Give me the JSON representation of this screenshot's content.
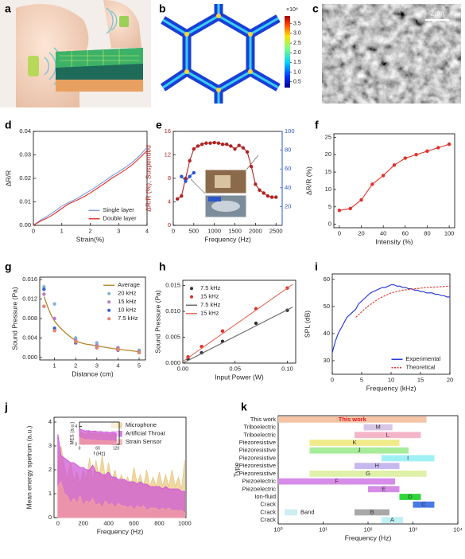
{
  "figures": [
    {
      "panel": "a"
    },
    {
      "panel": "b",
      "colorbar": {
        "label": "×10⁸",
        "clim": [
          0.2,
          3.9
        ],
        "ticks": [
          0.5,
          {
            "value": 1,
            "label": "1.0"
          },
          1.5,
          {
            "value": 2,
            "label": "2.0"
          },
          2.5,
          {
            "value": 3,
            "label": "3.0"
          },
          3.5
        ]
      }
    },
    {
      "panel": "c",
      "scale_bar": "2μm"
    }
  ],
  "chart_data": [
    {
      "panel": "d",
      "type": "line",
      "xlabel": "Strain(%)",
      "ylabel": "ΔR/R",
      "x": [
        0,
        0.25,
        0.5,
        0.75,
        1,
        1.25,
        1.5,
        1.75,
        2,
        2.25,
        2.5,
        2.75,
        3,
        3.25,
        3.5,
        3.75,
        4
      ],
      "xlim": [
        0,
        4
      ],
      "xticks": [
        0,
        1,
        2,
        3,
        4
      ],
      "ylim": [
        0,
        0.04
      ],
      "yticks": [
        {
          "value": 0,
          "label": "0.00"
        },
        {
          "value": 0.01,
          "label": "0.01"
        },
        {
          "value": 0.02,
          "label": "0.02"
        },
        {
          "value": 0.03,
          "label": "0.03"
        },
        {
          "value": 0.04,
          "label": "0.04"
        }
      ],
      "legend": "lower right",
      "series": [
        {
          "name": "Single layer",
          "color": "#7b9be0",
          "style": "line",
          "values": [
            0,
            0.0022,
            0.004,
            0.006,
            0.0082,
            0.0098,
            0.0112,
            0.013,
            0.0148,
            0.0168,
            0.0188,
            0.021,
            0.0228,
            0.0248,
            0.027,
            0.0298,
            0.0332
          ]
        },
        {
          "name": "Double layer",
          "color": "#e0302a",
          "style": "line",
          "values": [
            0,
            0.0018,
            0.0032,
            0.005,
            0.0072,
            0.0092,
            0.0105,
            0.012,
            0.0138,
            0.0158,
            0.0178,
            0.02,
            0.0218,
            0.0238,
            0.026,
            0.0288,
            0.0318
          ]
        }
      ]
    },
    {
      "panel": "e",
      "type": "line",
      "xlabel": "Frequency (Hz)",
      "ylabel": "ΔR/R (%), Suspended",
      "ylabel_color": "#b22222",
      "y2_color": "#2b55c9",
      "x": [
        100,
        200,
        300,
        400,
        500,
        600,
        700,
        800,
        900,
        1000,
        1100,
        1200,
        1300,
        1400,
        1500,
        1600,
        1700,
        1800,
        1900,
        2000,
        2100,
        2200,
        2300,
        2400,
        2500
      ],
      "xlim": [
        0,
        2650
      ],
      "xticks": [
        0,
        500,
        1000,
        1500,
        2000,
        2500
      ],
      "ylim": [
        0,
        16
      ],
      "yticks": [
        0,
        4,
        8,
        12,
        16
      ],
      "y2lim": [
        0,
        100
      ],
      "y2ticks": [
        20,
        40,
        60,
        80,
        100
      ],
      "series": [
        {
          "color": "#b22222",
          "style": "line+markers",
          "values": [
            4.5,
            5,
            8,
            11,
            13,
            13.5,
            13.8,
            14,
            14,
            14.1,
            14,
            13.8,
            13.8,
            13.5,
            13,
            13.6,
            13.2,
            12.5,
            10,
            7,
            6,
            5.5,
            5,
            4.8,
            4.8
          ]
        },
        {
          "color": "#2b55c9",
          "style": "line+markers",
          "axis": "y2",
          "values": [
            null,
            52,
            47,
            52,
            56,
            null,
            null,
            null,
            null,
            null,
            null,
            null,
            null,
            null,
            null,
            null,
            null,
            null,
            null,
            null,
            null,
            null,
            null,
            null,
            null
          ]
        }
      ]
    },
    {
      "panel": "f",
      "type": "line",
      "xlabel": "Intensity (%)",
      "ylabel": "ΔR/R (%)",
      "x": [
        0,
        10,
        20,
        30,
        40,
        50,
        60,
        70,
        80,
        90,
        100
      ],
      "xlim": [
        -5,
        105
      ],
      "xticks": [
        0,
        20,
        40,
        60,
        80,
        100
      ],
      "ylim": [
        -1,
        26
      ],
      "yticks": [
        0,
        5,
        10,
        15,
        20,
        25
      ],
      "series": [
        {
          "color": "#e0302a",
          "style": "line+markers",
          "values": [
            4,
            4.5,
            7,
            11.5,
            14,
            17,
            19,
            20,
            21,
            22,
            23
          ]
        }
      ]
    },
    {
      "panel": "g",
      "type": "scatter",
      "xlabel": "Distance (cm)",
      "ylabel": "Sound Pressure (Pa)",
      "x": [
        0.5,
        1,
        2,
        3,
        4,
        5
      ],
      "xlim": [
        0.3,
        5.3
      ],
      "xticks": [
        1,
        2,
        3,
        4,
        5
      ],
      "ylim": [
        -0.0005,
        0.0165
      ],
      "yticks": [
        {
          "value": 0,
          "label": "0.000"
        },
        {
          "value": 0.004,
          "label": "0.004"
        },
        {
          "value": 0.008,
          "label": "0.008"
        },
        {
          "value": 0.012,
          "label": "0.012"
        },
        {
          "value": 0.016,
          "label": "0.016"
        }
      ],
      "legend": "upper right",
      "series": [
        {
          "name": "Average",
          "color": "#b8862b",
          "style": "curve",
          "values": [
            0.0125,
            0.0075,
            0.0035,
            0.0024,
            0.0017,
            0.0012
          ]
        },
        {
          "name": "20 kHz",
          "color": "#7fb3d5",
          "style": "markers",
          "values": [
            0.0145,
            0.011,
            0.004,
            0.003,
            0.002,
            0.0015
          ]
        },
        {
          "name": "15 kHz",
          "color": "#b07cc6",
          "style": "markers",
          "values": [
            0.013,
            0.008,
            0.0035,
            0.0025,
            0.002,
            0.0012
          ]
        },
        {
          "name": "10 kHz",
          "color": "#3a5fcd",
          "style": "markers",
          "values": [
            0.014,
            0.006,
            0.003,
            0.002,
            0.0015,
            0.001
          ]
        },
        {
          "name": "7.5 kHz",
          "color": "#e9806a",
          "style": "markers",
          "values": [
            0.0105,
            0.0055,
            0.0032,
            0.002,
            0.0016,
            0.001
          ]
        }
      ]
    },
    {
      "panel": "h",
      "type": "scatter",
      "xlabel": "Input Power (W)",
      "ylabel": "Sound Pressure (Pa)",
      "xlim": [
        0,
        0.108
      ],
      "xticks": [
        {
          "value": 0,
          "label": "0.00"
        },
        {
          "value": 0.05,
          "label": "0.05"
        },
        {
          "value": 0.1,
          "label": "0.10"
        }
      ],
      "ylim": [
        0,
        0.016
      ],
      "yticks": [
        {
          "value": 0,
          "label": "0.000"
        },
        {
          "value": 0.005,
          "label": "0.005"
        },
        {
          "value": 0.01,
          "label": "0.010"
        },
        {
          "value": 0.015,
          "label": "0.015"
        }
      ],
      "legend": "upper left",
      "series": [
        {
          "name": "7.5 kHz",
          "color": "#333333",
          "style": "markers",
          "x": [
            0.005,
            0.018,
            0.038,
            0.07,
            0.1
          ],
          "values": [
            0.0008,
            0.002,
            0.0042,
            0.0077,
            0.0102
          ]
        },
        {
          "name": "15 kHz",
          "color": "#e0302a",
          "style": "markers",
          "x": [
            0.005,
            0.018,
            0.038,
            0.07,
            0.1
          ],
          "values": [
            0.0012,
            0.0032,
            0.0062,
            0.0105,
            0.0145
          ]
        },
        {
          "name": "7.5 kHz",
          "color": "#666666",
          "style": "line",
          "x": [
            0,
            0.105
          ],
          "values": [
            0,
            0.0108
          ]
        },
        {
          "name": "15 kHz",
          "color": "#e06a5a",
          "style": "line",
          "x": [
            0,
            0.105
          ],
          "values": [
            0.0003,
            0.0152
          ]
        }
      ]
    },
    {
      "panel": "i",
      "type": "line",
      "xlabel": "Frequency (kHz)",
      "ylabel": "SPL (dB)",
      "xlim": [
        0,
        20
      ],
      "xticks": [
        0,
        5,
        10,
        15,
        20
      ],
      "ylim": [
        25,
        62
      ],
      "yticks": [
        30,
        40,
        50,
        60
      ],
      "legend": "lower right",
      "series": [
        {
          "name": "Experimental",
          "color": "#1f2fd0",
          "style": "line",
          "x": [
            0,
            0.5,
            1,
            1.5,
            2,
            2.5,
            3,
            3.5,
            4,
            4.5,
            5,
            5.5,
            6,
            6.5,
            7,
            7.5,
            8,
            8.5,
            9,
            9.5,
            10,
            10.5,
            11,
            11.5,
            12,
            12.5,
            13,
            13.5,
            14,
            14.5,
            15,
            15.5,
            16,
            16.5,
            17,
            17.5,
            18,
            18.5,
            19,
            19.5,
            20
          ],
          "values": [
            33,
            37,
            40,
            42,
            44,
            46,
            47,
            48,
            49,
            51,
            52,
            53,
            54,
            55,
            55.5,
            56,
            56.5,
            57,
            57,
            57.5,
            58,
            58,
            57.5,
            57.5,
            57,
            57,
            56.5,
            56.5,
            56,
            56,
            55.5,
            55.5,
            55,
            55,
            55,
            54.5,
            54.5,
            54,
            54,
            53.5,
            53.5
          ]
        },
        {
          "name": "Theoretical",
          "color": "#e0302a",
          "style": "dashed",
          "x": [
            4,
            6,
            8,
            10,
            12,
            14,
            16,
            18,
            20
          ],
          "values": [
            46,
            50,
            53,
            55,
            56,
            56.5,
            57,
            57.2,
            57.5
          ]
        }
      ]
    },
    {
      "panel": "j",
      "type": "area",
      "xlabel": "Frequency (Hz)",
      "ylabel": "Mean energy spetrum (a.u.)",
      "x": [
        0,
        25,
        50,
        75,
        100,
        125,
        150,
        175,
        200,
        225,
        250,
        275,
        300,
        325,
        350,
        375,
        400,
        425,
        450,
        475,
        500,
        525,
        550,
        575,
        600,
        625,
        650,
        675,
        700,
        725,
        750,
        775,
        800,
        825,
        850,
        875,
        900,
        925,
        950,
        975,
        1000
      ],
      "xlim": [
        -30,
        1010
      ],
      "xticks": [
        0,
        200,
        400,
        600,
        800,
        1000
      ],
      "ylim": [
        0,
        4.2
      ],
      "yticks": [
        0,
        1,
        2,
        3,
        4
      ],
      "legend": "upper right",
      "series": [
        {
          "name": "Microphone",
          "color": "#e9c77f",
          "values": [
            2.2,
            3.0,
            2.2,
            1.6,
            2.3,
            1.5,
            1.9,
            1.4,
            2.0,
            1.6,
            2.5,
            1.5,
            2.4,
            1.7,
            2.6,
            1.6,
            2.3,
            1.5,
            2.0,
            1.4,
            1.8,
            1.4,
            1.7,
            1.3,
            2.1,
            1.4,
            1.8,
            1.3,
            2.0,
            1.3,
            1.7,
            1.3,
            1.9,
            1.3,
            1.8,
            1.3,
            2.0,
            1.3,
            1.7,
            1.2,
            2.4
          ]
        },
        {
          "name": "Artificial Throat",
          "color": "#cc4fd6",
          "values": [
            3.5,
            2.6,
            2.5,
            2.4,
            2.3,
            2.3,
            2.2,
            2.1,
            2.1,
            2.0,
            2.0,
            2.2,
            1.9,
            1.9,
            1.8,
            1.8,
            1.9,
            1.7,
            1.7,
            1.6,
            1.6,
            1.6,
            1.5,
            1.5,
            1.5,
            1.4,
            1.5,
            1.4,
            1.4,
            1.3,
            1.3,
            1.3,
            1.3,
            1.2,
            1.3,
            1.2,
            1.2,
            1.2,
            1.2,
            1.1,
            1.1
          ]
        },
        {
          "name": "Strain Sensor",
          "color": "#f4a0a0",
          "values": [
            1.3,
            1.5,
            1.0,
            0.9,
            0.6,
            0.8,
            0.6,
            0.9,
            0.5,
            0.7,
            0.6,
            0.8,
            0.5,
            0.6,
            0.4,
            0.7,
            0.5,
            0.6,
            0.4,
            0.6,
            0.5,
            0.5,
            0.4,
            0.5,
            0.3,
            0.5,
            0.4,
            0.5,
            0.3,
            0.4,
            0.4,
            0.4,
            0.3,
            0.4,
            0.3,
            0.4,
            0.3,
            0.3,
            0.3,
            0.3,
            0.2
          ]
        }
      ],
      "inset": {
        "type": "area",
        "xlabel": "f (Hz)",
        "ylabel": "MES (a.u.)",
        "x": [
          0,
          10,
          20,
          30,
          40,
          50,
          60,
          70,
          80,
          90,
          100,
          110,
          120
        ],
        "xlim": [
          0,
          130
        ],
        "xticks": [
          0,
          60,
          120
        ],
        "ylim": [
          0,
          5
        ],
        "yticks": [
          0,
          4
        ],
        "series": [
          {
            "color": "#e9c77f",
            "values": [
              3,
              2.5,
              2.2,
              2.8,
              2.4,
              2.6,
              2.3,
              2.5,
              2.2,
              2.4,
              2.1,
              2.3,
              2.0
            ]
          },
          {
            "color": "#cc4fd6",
            "values": [
              3.5,
              3.2,
              3.0,
              3.1,
              2.9,
              3.0,
              2.8,
              2.9,
              2.7,
              2.8,
              2.6,
              2.7,
              2.5
            ]
          },
          {
            "color": "#f4a0a0",
            "values": [
              1.5,
              1.2,
              1.0,
              1.1,
              0.9,
              1.0,
              0.8,
              0.9,
              0.8,
              0.8,
              0.7,
              0.8,
              0.6
            ]
          }
        ]
      }
    },
    {
      "panel": "k",
      "type": "range-bar",
      "xlabel": "Frequency (Hz)",
      "ylabel": "Type",
      "log_x": true,
      "xlim": [
        1,
        10000
      ],
      "xticks": [
        {
          "value": 1,
          "label": "10⁰"
        },
        {
          "value": 10,
          "label": "10¹"
        },
        {
          "value": 100,
          "label": "10²"
        },
        {
          "value": 1000,
          "label": "10³"
        },
        {
          "value": 10000,
          "label": "10⁴"
        }
      ],
      "categories": [
        "This work",
        "Triboelectric",
        "Triboelectric",
        "Piezoresistive",
        "Piezoresistive",
        "Piezoresistive",
        "Piezoresistive",
        "Piezoresistive",
        "Piezoelectric",
        "Piezoelectric",
        "Ion-fluid",
        "Crack",
        "Crack",
        "Crack"
      ],
      "bar_labels": [
        "This work",
        "M",
        "L",
        "K",
        "J",
        "I",
        "H",
        "G",
        "F",
        "E",
        "D",
        "C",
        "B",
        "A"
      ],
      "bar_label_colors": [
        "#e8141c",
        "#333333",
        "#333333",
        "#333333",
        "#333333",
        "#333333",
        "#333333",
        "#333333",
        "#333333",
        "#333333",
        "#333333",
        "#333333",
        "#333333",
        "#333333"
      ],
      "low": [
        1,
        80,
        50,
        5,
        5,
        200,
        50,
        5,
        1,
        100,
        500,
        1000,
        50,
        200
      ],
      "high": [
        2000,
        350,
        1500,
        500,
        800,
        3000,
        500,
        2000,
        400,
        500,
        1500,
        3000,
        300,
        600
      ],
      "colors": [
        "#f6c4a6",
        "#d9c6e6",
        "#f5b5c8",
        "#f0ea8a",
        "#a7ec9a",
        "#9ff0f4",
        "#c9b8ee",
        "#dff0a8",
        "#d68ce8",
        "#d58ce6",
        "#2fd63a",
        "#4a78e6",
        "#a8a8a8",
        "#bff0f4"
      ],
      "legend": {
        "label": "Band",
        "color": "#cdeef2",
        "corner": "lower left"
      }
    }
  ]
}
